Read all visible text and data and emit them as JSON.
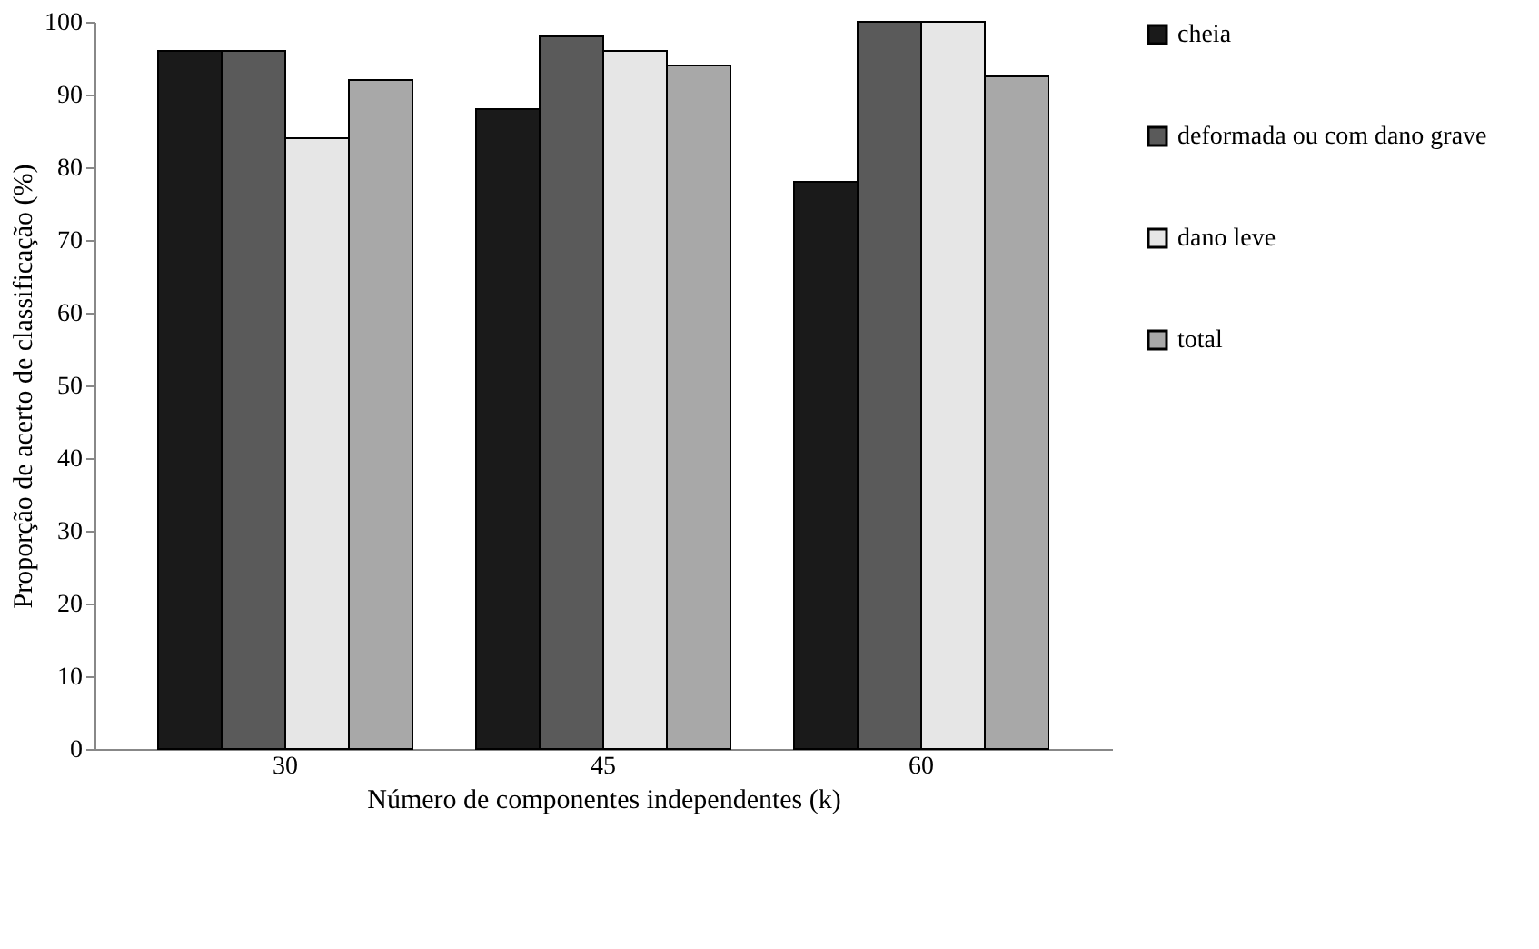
{
  "chart_data": {
    "type": "bar",
    "xlabel": "Número de componentes independentes (k)",
    "ylabel": "Proporção de acerto de classificação (%)",
    "categories": [
      "30",
      "45",
      "60"
    ],
    "series": [
      {
        "name": "cheia",
        "color": "#1a1a1a",
        "values": [
          96,
          88,
          78
        ]
      },
      {
        "name": "deformada ou com dano grave",
        "color": "#5a5a5a",
        "values": [
          96,
          98,
          100
        ]
      },
      {
        "name": "dano leve",
        "color": "#e6e6e6",
        "values": [
          84,
          96,
          100
        ]
      },
      {
        "name": "total",
        "color": "#a8a8a8",
        "values": [
          92,
          94,
          92.5
        ]
      }
    ],
    "ylim": [
      0,
      100
    ],
    "yticks": [
      0,
      10,
      20,
      30,
      40,
      50,
      60,
      70,
      80,
      90,
      100
    ],
    "grid": false,
    "legend": "right"
  }
}
